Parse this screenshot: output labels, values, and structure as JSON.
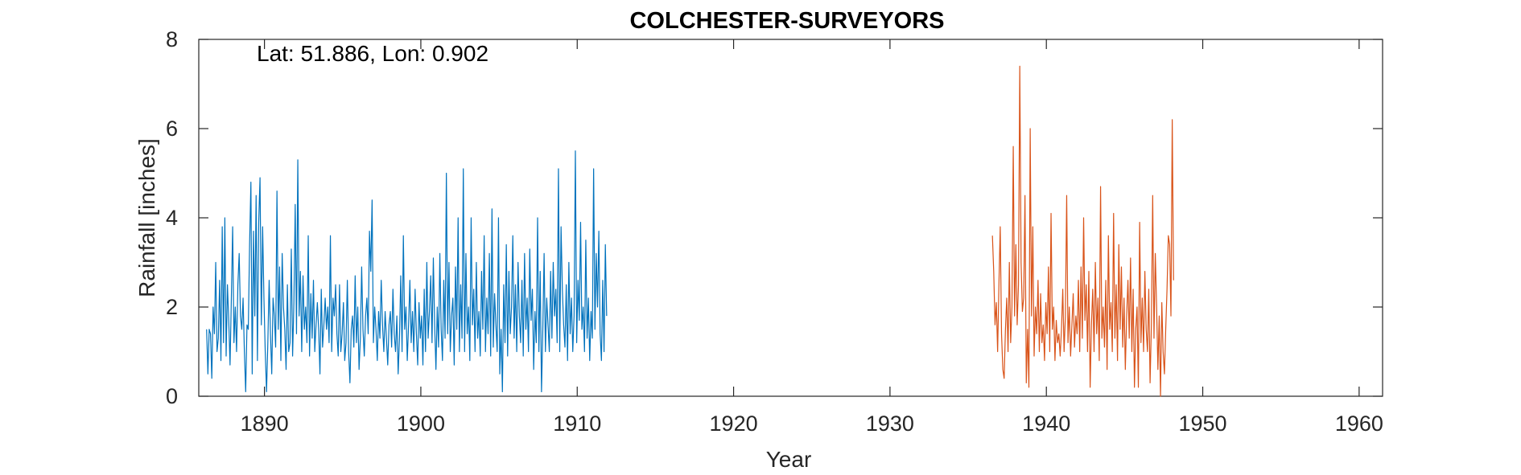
{
  "chart_data": {
    "type": "line",
    "title": "COLCHESTER-SURVEYORS",
    "xlabel": "Year",
    "ylabel": "Rainfall [inches]",
    "annotation": "Lat: 51.886, Lon: 0.902",
    "xlim": [
      1885.8,
      1961.5
    ],
    "ylim": [
      0,
      8
    ],
    "x_ticks": [
      1890,
      1900,
      1910,
      1920,
      1930,
      1940,
      1950,
      1960
    ],
    "y_ticks": [
      0,
      2,
      4,
      6,
      8
    ],
    "grid": false,
    "series": [
      {
        "color": "#0072BD",
        "x_start": 1886.3,
        "x_step": 0.08333,
        "values": [
          1.5,
          0.5,
          1.5,
          1.4,
          0.4,
          2.0,
          1.4,
          3.0,
          1.0,
          1.3,
          2.6,
          0.8,
          3.8,
          1.2,
          4.0,
          0.9,
          2.5,
          1.7,
          0.7,
          2.2,
          3.8,
          1.2,
          2.0,
          1.0,
          2.5,
          3.2,
          1.8,
          1.5,
          2.2,
          1.0,
          0.1,
          1.6,
          1.5,
          3.4,
          4.8,
          0.5,
          3.7,
          1.8,
          4.5,
          0.8,
          3.9,
          4.9,
          1.6,
          3.8,
          2.2,
          1.0,
          0.1,
          1.2,
          2.6,
          1.4,
          0.5,
          2.2,
          1.8,
          1.1,
          4.6,
          1.5,
          2.9,
          0.8,
          3.2,
          2.0,
          1.5,
          0.6,
          2.5,
          1.0,
          1.2,
          3.3,
          0.9,
          2.1,
          4.3,
          1.4,
          5.3,
          1.8,
          2.8,
          1.0,
          2.7,
          1.5,
          2.0,
          1.2,
          3.6,
          0.9,
          2.3,
          1.3,
          2.6,
          1.0,
          1.6,
          2.1,
          1.5,
          0.5,
          2.4,
          1.1,
          1.6,
          2.2,
          1.5,
          2.0,
          1.2,
          3.6,
          1.0,
          2.2,
          1.8,
          2.5,
          1.4,
          0.9,
          2.5,
          1.0,
          1.4,
          2.1,
          0.8,
          1.2,
          2.6,
          1.0,
          0.3,
          1.5,
          1.8,
          1.1,
          2.7,
          1.2,
          2.0,
          0.6,
          1.3,
          2.9,
          1.5,
          0.9,
          1.8,
          2.2,
          1.4,
          3.7,
          2.8,
          4.4,
          1.2,
          2.0,
          1.5,
          0.8,
          1.9,
          1.3,
          2.6,
          1.6,
          1.0,
          1.9,
          1.3,
          0.7,
          1.6,
          1.9,
          1.1,
          2.4,
          1.4,
          1.0,
          1.8,
          0.5,
          1.3,
          2.7,
          1.0,
          3.6,
          1.5,
          2.0,
          0.8,
          1.6,
          2.6,
          1.2,
          1.9,
          1.0,
          2.4,
          1.4,
          0.7,
          2.1,
          1.3,
          1.8,
          0.7,
          2.4,
          1.0,
          3.0,
          1.3,
          1.9,
          2.7,
          1.2,
          3.1,
          1.6,
          0.6,
          2.0,
          1.1,
          3.2,
          1.5,
          0.8,
          2.6,
          1.3,
          5.0,
          1.4,
          3.0,
          1.0,
          1.8,
          2.2,
          0.7,
          2.9,
          1.5,
          4.0,
          1.0,
          2.5,
          1.3,
          5.1,
          1.0,
          3.2,
          1.4,
          2.0,
          0.8,
          4.0,
          1.6,
          2.4,
          1.0,
          3.0,
          1.3,
          1.9,
          0.9,
          2.8,
          1.5,
          3.6,
          1.0,
          2.2,
          1.4,
          3.2,
          0.9,
          4.2,
          1.1,
          2.3,
          1.6,
          1.0,
          4.0,
          0.5,
          1.5,
          0.1,
          2.5,
          1.2,
          3.4,
          0.9,
          2.8,
          1.4,
          2.0,
          3.6,
          1.3,
          2.5,
          1.0,
          3.0,
          1.8,
          1.2,
          2.6,
          0.9,
          3.2,
          1.5,
          2.2,
          1.0,
          3.3,
          1.7,
          2.4,
          0.6,
          1.9,
          1.2,
          4.0,
          1.0,
          2.8,
          0.1,
          1.5,
          3.2,
          1.0,
          2.2,
          1.6,
          1.0,
          2.8,
          1.3,
          3.0,
          1.8,
          2.4,
          1.2,
          5.1,
          1.0,
          3.8,
          2.4,
          1.6,
          1.1,
          2.5,
          0.8,
          3.0,
          1.4,
          2.2,
          1.0,
          1.8,
          5.5,
          1.2,
          2.6,
          1.7,
          3.9,
          1.5,
          2.0,
          1.0,
          3.5,
          1.3,
          2.2,
          0.8,
          1.9,
          1.3,
          5.1,
          1.5,
          3.2,
          2.0,
          3.7,
          1.4,
          0.8,
          2.6,
          1.0,
          3.4,
          1.8
        ]
      },
      {
        "color": "#D95319",
        "x_start": 1936.55,
        "x_step": 0.08333,
        "values": [
          3.6,
          2.8,
          1.6,
          2.1,
          1.0,
          2.5,
          3.8,
          1.4,
          0.6,
          0.4,
          1.5,
          2.2,
          1.0,
          3.0,
          1.2,
          2.0,
          5.6,
          1.8,
          3.4,
          1.6,
          2.5,
          7.4,
          3.0,
          1.9,
          2.2,
          4.5,
          0.3,
          1.5,
          0.2,
          6.0,
          1.8,
          3.8,
          0.9,
          2.0,
          1.4,
          2.6,
          1.0,
          2.3,
          1.2,
          1.6,
          0.8,
          2.1,
          1.4,
          2.9,
          1.0,
          4.1,
          1.5,
          2.0,
          0.8,
          1.7,
          1.2,
          1.4,
          0.9,
          1.5,
          2.4,
          1.0,
          1.8,
          4.5,
          1.2,
          2.0,
          0.9,
          1.6,
          2.3,
          1.1,
          1.8,
          1.4,
          2.6,
          1.0,
          2.9,
          1.3,
          4.0,
          1.7,
          2.5,
          1.0,
          2.8,
          0.2,
          1.6,
          2.4,
          1.0,
          3.0,
          1.4,
          2.2,
          0.8,
          4.7,
          1.3,
          2.0,
          1.1,
          2.6,
          0.6,
          3.6,
          1.5,
          2.1,
          1.0,
          4.1,
          1.3,
          2.5,
          0.8,
          3.4,
          1.5,
          2.9,
          1.1,
          2.2,
          0.6,
          1.8,
          2.6,
          1.3,
          3.1,
          1.0,
          2.4,
          0.2,
          1.5,
          2.0,
          0.2,
          3.9,
          1.2,
          2.2,
          1.0,
          2.8,
          1.5,
          1.0,
          2.4,
          0.3,
          1.6,
          4.5,
          1.3,
          3.2,
          2.0,
          0.6,
          1.8,
          0.0,
          2.1,
          1.0,
          0.5,
          1.5,
          2.4,
          3.6,
          3.4,
          1.8,
          6.2,
          2.6
        ]
      }
    ]
  }
}
